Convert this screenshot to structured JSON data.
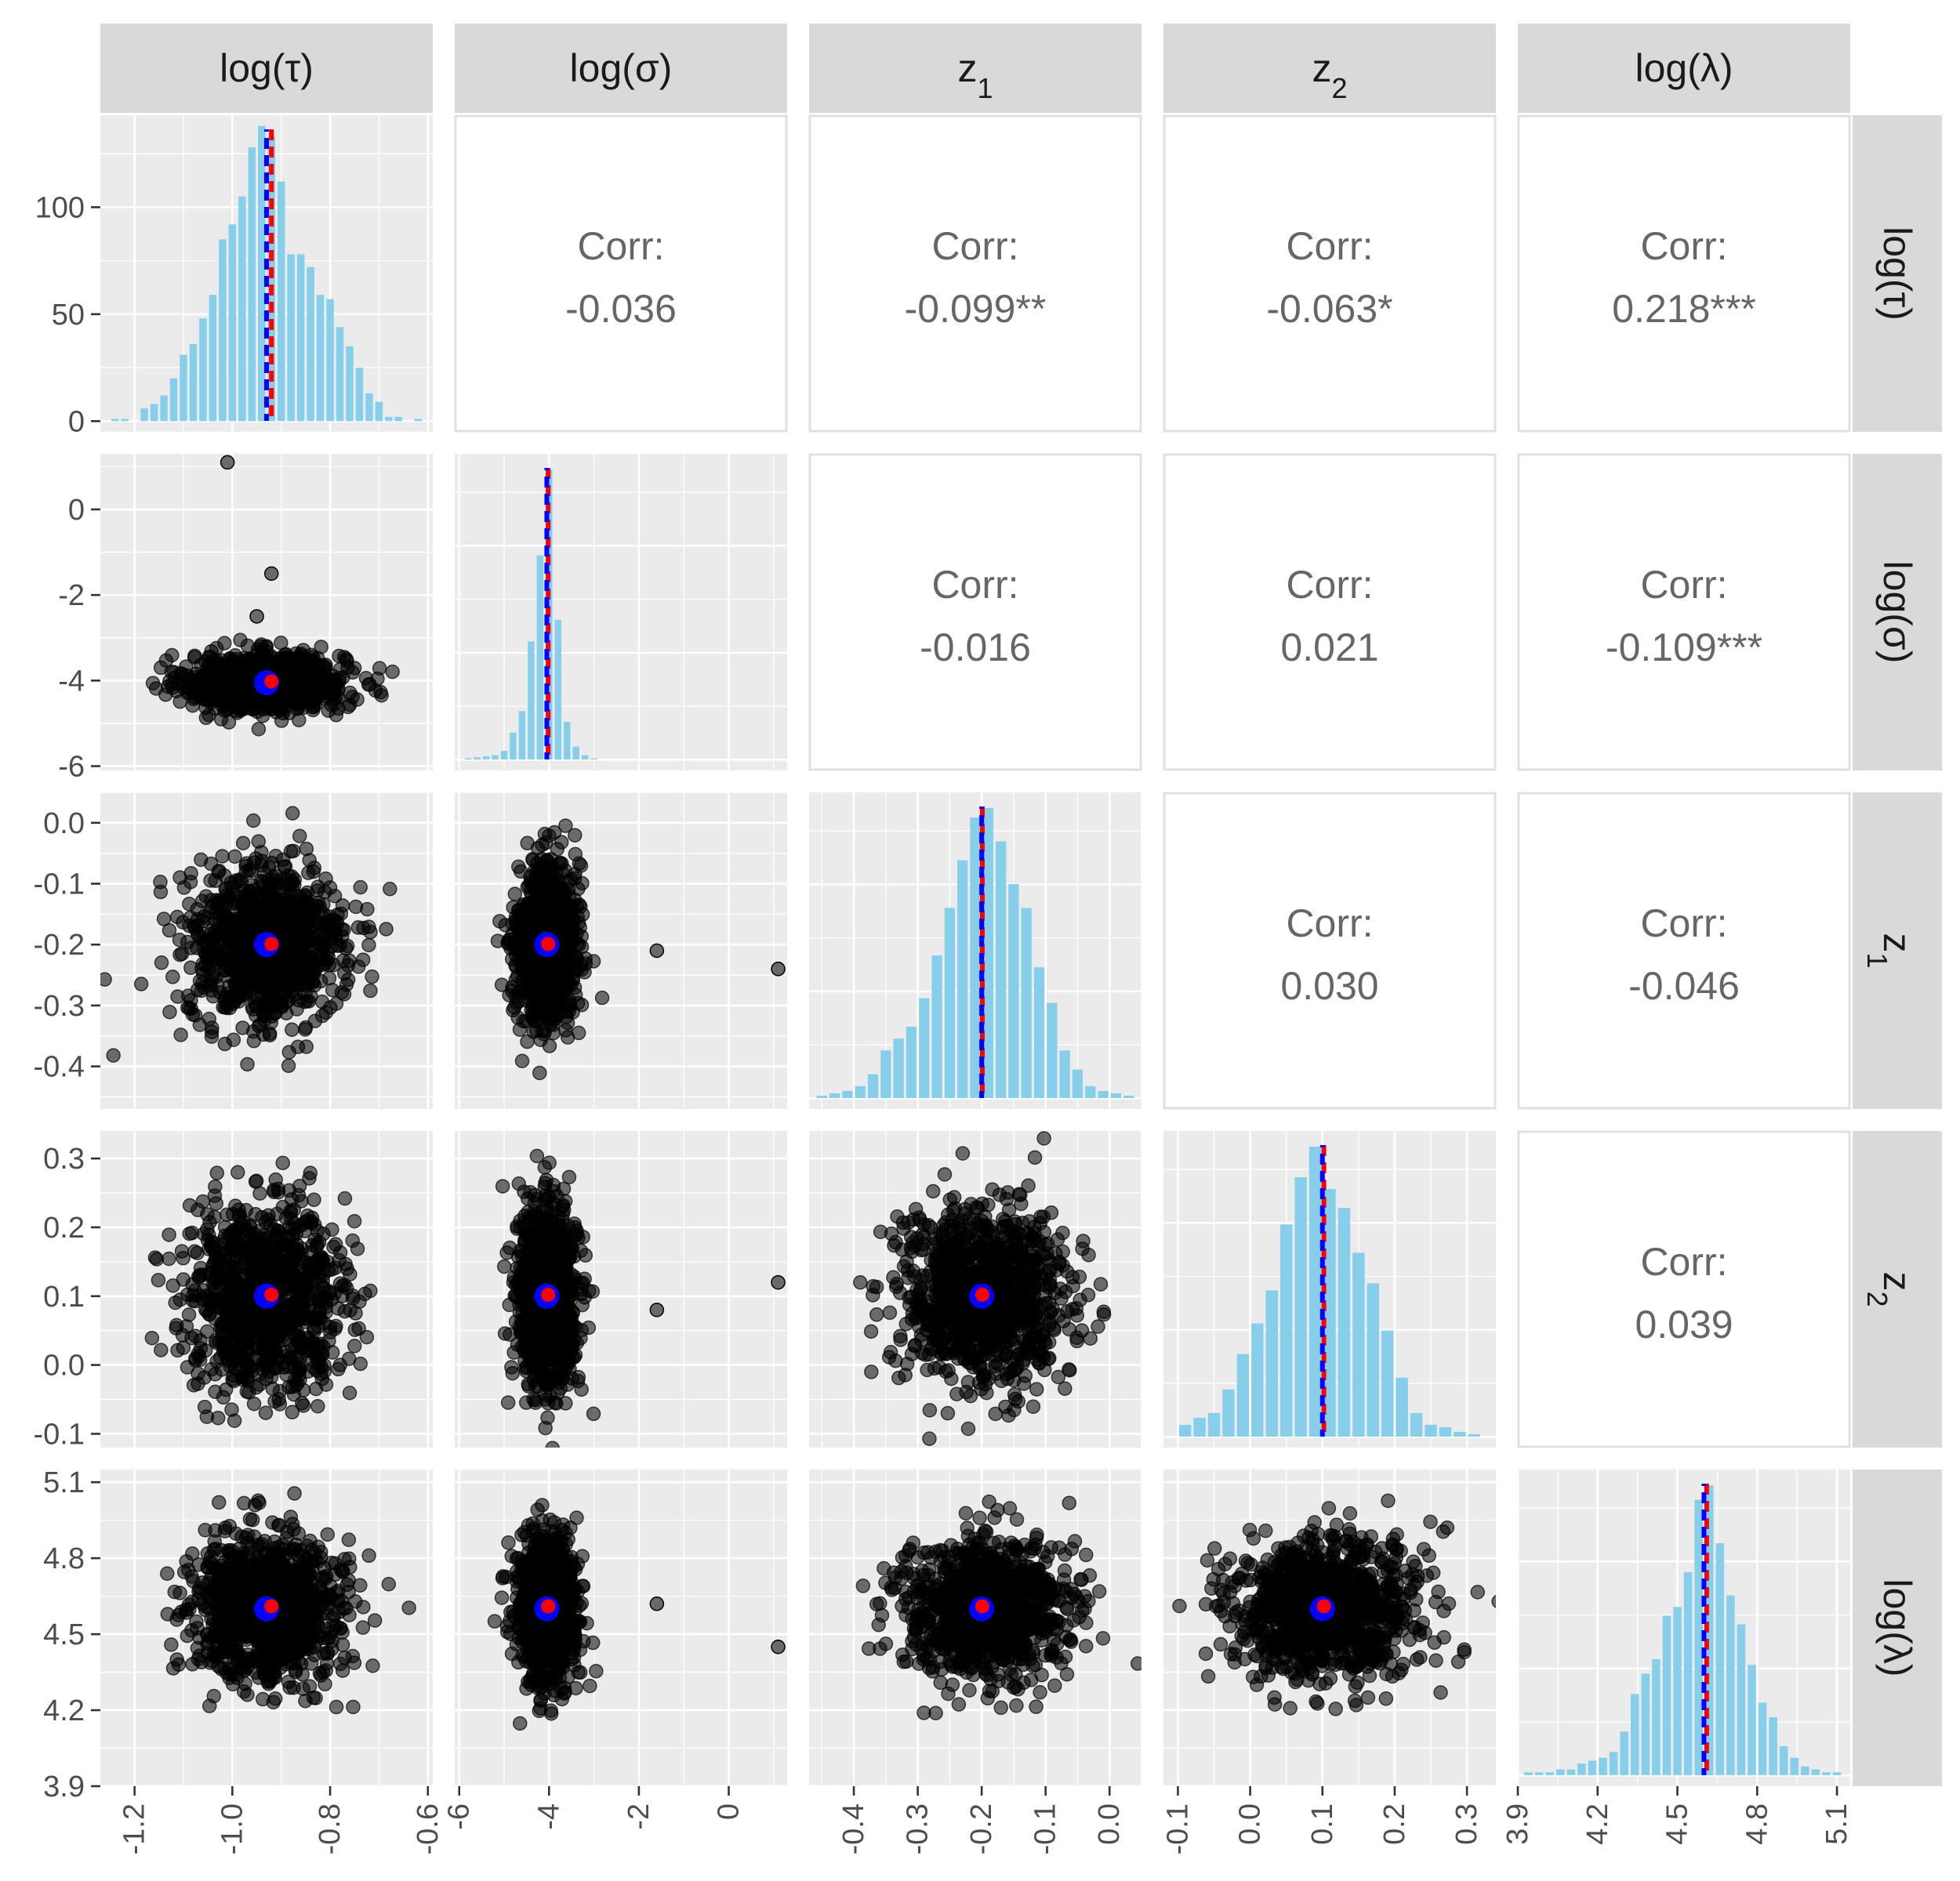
{
  "chart_data": {
    "type": "scatter-matrix",
    "title": "",
    "variables": [
      {
        "label": "log(τ)",
        "range": [
          -1.27,
          -0.59
        ],
        "ticks": [
          -1.2,
          -1.0,
          -0.8,
          -0.6
        ],
        "tick_labels": [
          "-1.2",
          "-1.0",
          "-0.8",
          "-0.6"
        ],
        "mean": -0.93,
        "estimate": -0.92
      },
      {
        "label": "log(σ)",
        "range": [
          -6.1,
          1.3
        ],
        "ticks": [
          -6,
          -4,
          -2,
          0
        ],
        "tick_labels": [
          "-6",
          "-4",
          "-2",
          "0"
        ],
        "mean": -4.05,
        "estimate": -4.02
      },
      {
        "label": "z",
        "label_subscript": "1",
        "range": [
          -0.47,
          0.05
        ],
        "ticks": [
          -0.4,
          -0.3,
          -0.2,
          -0.1,
          0.0
        ],
        "tick_labels": [
          "-0.4",
          "-0.3",
          "-0.2",
          "-0.1",
          "0.0"
        ],
        "mean": -0.2,
        "estimate": -0.199
      },
      {
        "label": "z",
        "label_subscript": "2",
        "range": [
          -0.12,
          0.34
        ],
        "ticks": [
          -0.1,
          0.0,
          0.1,
          0.2,
          0.3
        ],
        "tick_labels": [
          "-0.1",
          "0.0",
          "0.1",
          "0.2",
          "0.3"
        ],
        "mean": 0.1,
        "estimate": 0.102
      },
      {
        "label": "log(λ)",
        "range": [
          3.9,
          5.15
        ],
        "ticks": [
          3.9,
          4.2,
          4.5,
          4.8,
          5.1
        ],
        "tick_labels": [
          "3.9",
          "4.2",
          "4.5",
          "4.8",
          "5.1"
        ],
        "mean": 4.6,
        "estimate": 4.61
      }
    ],
    "diagonal": {
      "type": "histogram",
      "bar_color": "#87ceeb",
      "mean_line_color": "#0000ff",
      "estimate_line_color": "#ff0000",
      "y_axis_panel": 0,
      "y_ticks": [
        0,
        50,
        100
      ],
      "y_tick_labels": [
        "0",
        "50",
        "100"
      ],
      "y_range": [
        -5,
        143
      ],
      "histograms": [
        {
          "bins": [
            -1.24,
            -1.22,
            -1.2,
            -1.18,
            -1.16,
            -1.14,
            -1.12,
            -1.1,
            -1.08,
            -1.06,
            -1.04,
            -1.02,
            -1.0,
            -0.98,
            -0.96,
            -0.94,
            -0.92,
            -0.9,
            -0.88,
            -0.86,
            -0.84,
            -0.82,
            -0.8,
            -0.78,
            -0.76,
            -0.74,
            -0.72,
            -0.7,
            -0.68,
            -0.66,
            -0.64,
            -0.62
          ],
          "counts": [
            1,
            1,
            0,
            6,
            8,
            12,
            20,
            31,
            36,
            48,
            59,
            85,
            92,
            105,
            128,
            138,
            133,
            112,
            78,
            78,
            72,
            59,
            57,
            44,
            35,
            25,
            13,
            9,
            2,
            2,
            0,
            1
          ]
        },
        {
          "bins": [
            -5.8,
            -5.6,
            -5.4,
            -5.2,
            -5.0,
            -4.8,
            -4.6,
            -4.4,
            -4.2,
            -4.0,
            -3.8,
            -3.6,
            -3.4,
            -3.2,
            -3.0
          ],
          "counts": [
            1,
            2,
            3,
            4,
            8,
            25,
            45,
            110,
            190,
            270,
            130,
            35,
            12,
            4,
            1
          ]
        },
        {
          "bins": [
            -0.45,
            -0.43,
            -0.41,
            -0.39,
            -0.37,
            -0.35,
            -0.33,
            -0.31,
            -0.29,
            -0.27,
            -0.25,
            -0.23,
            -0.21,
            -0.19,
            -0.17,
            -0.15,
            -0.13,
            -0.11,
            -0.09,
            -0.07,
            -0.05,
            -0.03,
            -0.01,
            0.01,
            0.03
          ],
          "counts": [
            1,
            2,
            3,
            5,
            10,
            20,
            25,
            30,
            42,
            60,
            80,
            100,
            118,
            122,
            108,
            90,
            80,
            55,
            40,
            20,
            12,
            5,
            3,
            2,
            1
          ]
        },
        {
          "bins": [
            -0.09,
            -0.07,
            -0.05,
            -0.03,
            -0.01,
            0.01,
            0.03,
            0.05,
            0.07,
            0.09,
            0.11,
            0.13,
            0.15,
            0.17,
            0.19,
            0.21,
            0.23,
            0.25,
            0.27,
            0.29,
            0.31
          ],
          "counts": [
            5,
            8,
            10,
            20,
            35,
            48,
            62,
            90,
            110,
            123,
            105,
            97,
            78,
            65,
            45,
            25,
            10,
            5,
            4,
            2,
            1
          ]
        },
        {
          "bins": [
            3.94,
            3.98,
            4.02,
            4.06,
            4.1,
            4.14,
            4.18,
            4.22,
            4.26,
            4.3,
            4.34,
            4.38,
            4.42,
            4.46,
            4.5,
            4.54,
            4.58,
            4.62,
            4.66,
            4.7,
            4.74,
            4.78,
            4.82,
            4.86,
            4.9,
            4.94,
            4.98,
            5.02,
            5.06,
            5.1
          ],
          "counts": [
            1,
            1,
            1,
            2,
            2,
            4,
            5,
            6,
            8,
            15,
            28,
            35,
            40,
            55,
            58,
            70,
            95,
            100,
            80,
            62,
            52,
            38,
            25,
            20,
            10,
            6,
            3,
            2,
            1,
            1
          ]
        }
      ]
    },
    "lower": {
      "type": "scatter",
      "point_color": "#000000",
      "point_opacity": 0.55,
      "point_count": 1000,
      "mean_marker_color": "#0000ff",
      "estimate_marker_color": "#ff0000",
      "visible_outliers": [
        {
          "i": 1,
          "j": 0,
          "x": -1.01,
          "y": 1.1
        },
        {
          "i": 1,
          "j": 0,
          "x": -0.92,
          "y": -1.5
        },
        {
          "i": 1,
          "j": 0,
          "x": -0.95,
          "y": -2.5
        },
        {
          "i": 2,
          "j": 1,
          "x": -1.6,
          "y": -0.21
        },
        {
          "i": 2,
          "j": 1,
          "x": 1.1,
          "y": -0.24
        },
        {
          "i": 3,
          "j": 1,
          "x": -1.6,
          "y": 0.08
        },
        {
          "i": 3,
          "j": 1,
          "x": 1.1,
          "y": 0.12
        },
        {
          "i": 4,
          "j": 1,
          "x": -1.6,
          "y": 4.62
        },
        {
          "i": 4,
          "j": 1,
          "x": 1.1,
          "y": 4.45
        }
      ]
    },
    "upper": {
      "type": "correlation",
      "label": "Corr:",
      "cells": [
        {
          "row": 0,
          "col": 1,
          "value": "-0.036"
        },
        {
          "row": 0,
          "col": 2,
          "value": "-0.099**"
        },
        {
          "row": 0,
          "col": 3,
          "value": "-0.063*"
        },
        {
          "row": 0,
          "col": 4,
          "value": "0.218***"
        },
        {
          "row": 1,
          "col": 2,
          "value": "-0.016"
        },
        {
          "row": 1,
          "col": 3,
          "value": "0.021"
        },
        {
          "row": 1,
          "col": 4,
          "value": "-0.109***"
        },
        {
          "row": 2,
          "col": 3,
          "value": "0.030"
        },
        {
          "row": 2,
          "col": 4,
          "value": "-0.046"
        },
        {
          "row": 3,
          "col": 4,
          "value": "0.039"
        }
      ]
    },
    "colors": {
      "panel_background": "#ebebeb",
      "grid_major": "#ffffff",
      "strip_background": "#d9d9d9",
      "strip_text": "#1a1a1a",
      "tick_text": "#4d4d4d",
      "corr_text": "#666666",
      "panel_border": "#e0e0e0"
    }
  }
}
